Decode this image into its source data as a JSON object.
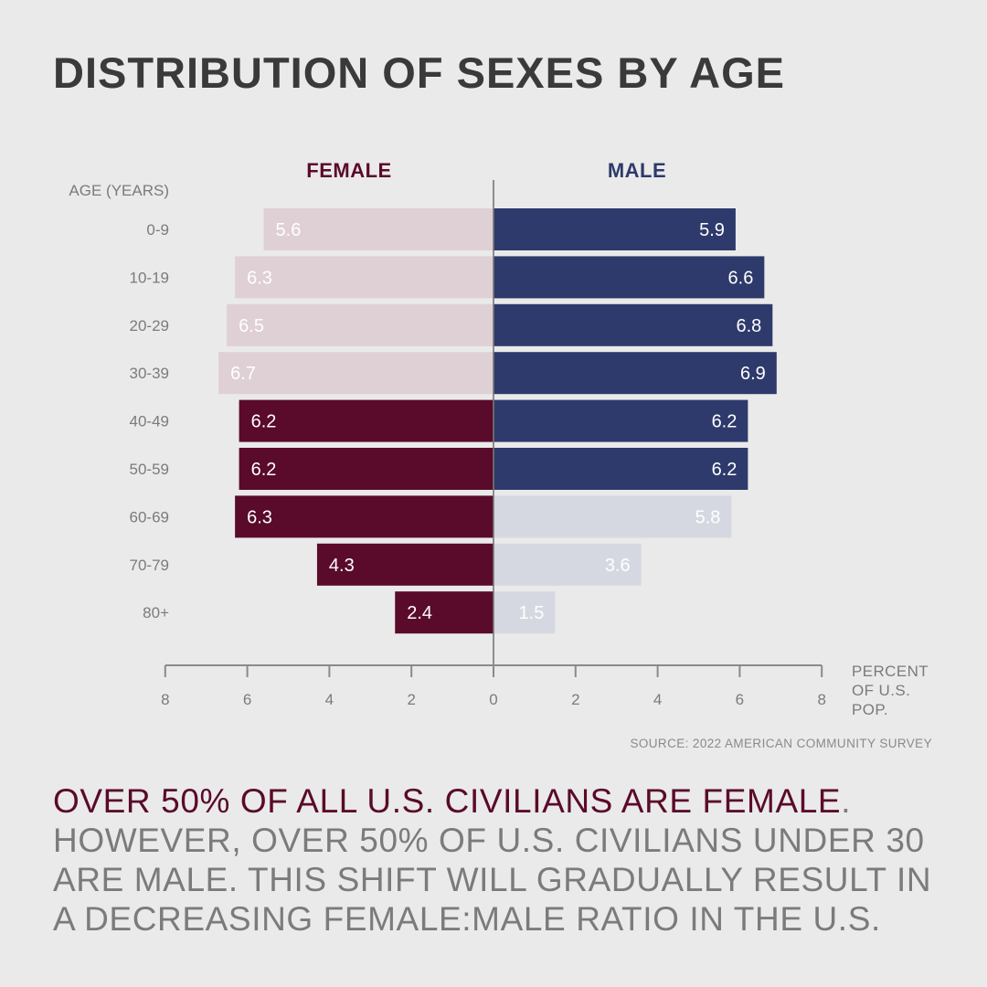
{
  "title": "DISTRIBUTION OF SEXES BY AGE",
  "source": "SOURCE: 2022 AMERICAN COMMUNITY SURVEY",
  "caption": {
    "highlight": "OVER 50% OF ALL U.S. CIVILIANS ARE FEMALE",
    "rest": ". HOWEVER, OVER 50% OF U.S. CIVILIANS UNDER 30 ARE MALE. THIS SHIFT WILL GRADUALLY RESULT IN A DECREASING FEMALE:MALE RATIO IN THE U.S."
  },
  "colors": {
    "female_dark": "#5a0a2a",
    "female_light": "#dfd0d5",
    "male_dark": "#2e3a6b",
    "male_light": "#d6d8e1",
    "axis": "#8a8a8a",
    "text_gray": "#7b7b7b"
  },
  "chart_data": {
    "type": "bar",
    "orientation": "horizontal-diverging",
    "categories": [
      "0-9",
      "10-19",
      "20-29",
      "30-39",
      "40-49",
      "50-59",
      "60-69",
      "70-79",
      "80+"
    ],
    "series": [
      {
        "name": "FEMALE",
        "side": "left",
        "values": [
          5.6,
          6.3,
          6.5,
          6.7,
          6.2,
          6.2,
          6.3,
          4.3,
          2.4
        ],
        "highlighted": [
          false,
          false,
          false,
          false,
          true,
          true,
          true,
          true,
          true
        ]
      },
      {
        "name": "MALE",
        "side": "right",
        "values": [
          5.9,
          6.6,
          6.8,
          6.9,
          6.2,
          6.2,
          5.8,
          3.6,
          1.5
        ],
        "highlighted": [
          true,
          true,
          true,
          true,
          true,
          true,
          false,
          false,
          false
        ]
      }
    ],
    "ylabel": "AGE (YEARS)",
    "xlabel": [
      "PERCENT",
      "OF U.S.",
      "POP."
    ],
    "xlim": [
      -8,
      8
    ],
    "xticks": [
      8,
      6,
      4,
      2,
      0,
      2,
      4,
      6,
      8
    ],
    "grid": false,
    "legend": "top"
  }
}
